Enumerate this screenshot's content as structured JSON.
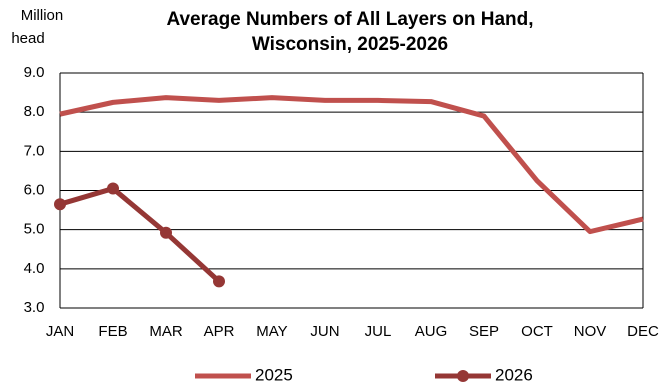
{
  "chart_data": {
    "type": "line",
    "title": [
      "Average Numbers of All Layers on Hand,",
      "Wisconsin, 2025-2026"
    ],
    "ylabel": [
      "Million",
      "head"
    ],
    "categories": [
      "JAN",
      "FEB",
      "MAR",
      "APR",
      "MAY",
      "JUN",
      "JUL",
      "AUG",
      "SEP",
      "OCT",
      "NOV",
      "DEC"
    ],
    "series": [
      {
        "name": "2025",
        "color": "#c0504d",
        "marker": false,
        "values": [
          7.95,
          8.25,
          8.37,
          8.3,
          8.37,
          8.3,
          8.3,
          8.27,
          7.9,
          6.25,
          4.95,
          5.27
        ]
      },
      {
        "name": "2026",
        "color": "#953735",
        "marker": true,
        "values": [
          5.65,
          6.05,
          4.92,
          3.68,
          null,
          null,
          null,
          null,
          null,
          null,
          null,
          null
        ]
      }
    ],
    "ylim": [
      3,
      9
    ],
    "yticks": [
      {
        "value": 3,
        "label": "3.0"
      },
      {
        "value": 4,
        "label": "4.0"
      },
      {
        "value": 5,
        "label": "5.0"
      },
      {
        "value": 6,
        "label": "6.0"
      },
      {
        "value": 7,
        "label": "7.0"
      },
      {
        "value": 8,
        "label": "8.0"
      },
      {
        "value": 9,
        "label": "9.0"
      }
    ],
    "grid": true,
    "legend": "bottom"
  }
}
